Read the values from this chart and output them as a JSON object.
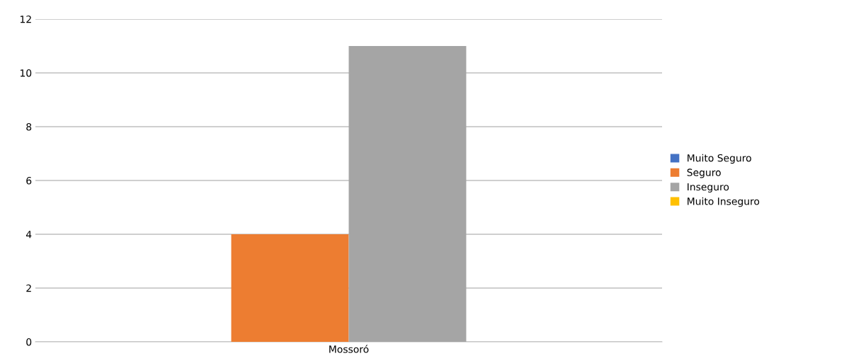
{
  "chart_data": {
    "type": "bar",
    "categories": [
      "Mossoró"
    ],
    "series": [
      {
        "name": "Muito Seguro",
        "color": "#4472c4",
        "values": [
          0
        ]
      },
      {
        "name": "Seguro",
        "color": "#ed7d31",
        "values": [
          4
        ]
      },
      {
        "name": "Inseguro",
        "color": "#a5a5a5",
        "values": [
          11
        ]
      },
      {
        "name": "Muito Inseguro",
        "color": "#ffc000",
        "values": [
          0
        ]
      }
    ],
    "ylim": [
      0,
      12
    ],
    "yticks": [
      0,
      2,
      4,
      6,
      8,
      10,
      12
    ],
    "grid": "y",
    "legend": "right"
  }
}
